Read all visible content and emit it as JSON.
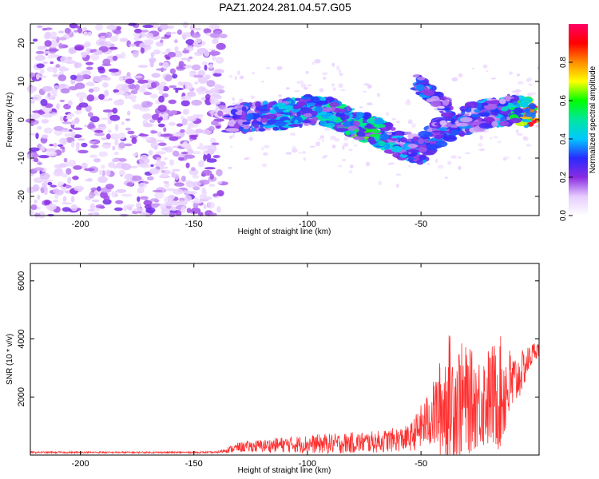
{
  "title": "PAZ1.2024.281.04.57.G05",
  "chart_data": [
    {
      "type": "heatmap",
      "xlabel": "Height of straight line (km)",
      "ylabel": "Frequency (Hz)",
      "xlim": [
        -222,
        2
      ],
      "ylim": [
        -25,
        25
      ],
      "xticks": [
        -200,
        -150,
        -100,
        -50
      ],
      "yticks": [
        -20,
        -10,
        0,
        10,
        20
      ],
      "colorbar": {
        "label": "Normalized spectral amplitude",
        "range": [
          0,
          1
        ],
        "ticks": [
          0.0,
          0.2,
          0.4,
          0.6,
          0.8
        ],
        "colors": [
          "#ffffff",
          "#e6ccff",
          "#8a2be2",
          "#2a2aff",
          "#00c8ff",
          "#00e6a0",
          "#00ff00",
          "#ffff00",
          "#ff8c00",
          "#ff0000",
          "#ff0066"
        ]
      },
      "noise_region": {
        "x_from": -222,
        "x_to": -137,
        "amplitude": 0.2
      },
      "signal_path": [
        {
          "x": -135,
          "f": 0.0
        },
        {
          "x": -125,
          "f": 0.5
        },
        {
          "x": -115,
          "f": 1.0
        },
        {
          "x": -105,
          "f": 2.0
        },
        {
          "x": -95,
          "f": 3.0
        },
        {
          "x": -88,
          "f": 1.5
        },
        {
          "x": -80,
          "f": -1.0
        },
        {
          "x": -70,
          "f": -3.0
        },
        {
          "x": -60,
          "f": -6.0
        },
        {
          "x": -50,
          "f": -8.0
        },
        {
          "x": -44,
          "f": -4.0
        },
        {
          "x": -35,
          "f": -1.0
        },
        {
          "x": -25,
          "f": 1.0
        },
        {
          "x": -15,
          "f": 2.0
        },
        {
          "x": -8,
          "f": 3.0
        },
        {
          "x": 0,
          "f": 1.0
        }
      ],
      "signal_amplitude": [
        {
          "x": -135,
          "a": 0.25
        },
        {
          "x": -110,
          "a": 0.4
        },
        {
          "x": -95,
          "a": 0.42
        },
        {
          "x": -75,
          "a": 0.55
        },
        {
          "x": -60,
          "a": 0.35
        },
        {
          "x": -40,
          "a": 0.3
        },
        {
          "x": -15,
          "a": 0.35
        },
        {
          "x": -5,
          "a": 0.6
        },
        {
          "x": 0,
          "a": 0.95
        }
      ],
      "side_branch": [
        {
          "x": -52,
          "f": 10.0
        },
        {
          "x": -45,
          "f": 6.0
        },
        {
          "x": -38,
          "f": 3.0
        }
      ]
    },
    {
      "type": "line",
      "xlabel": "Height of straight line (km)",
      "ylabel": "SNR (10 * v/v)",
      "xlim": [
        -222,
        2
      ],
      "ylim": [
        0,
        6600
      ],
      "xticks": [
        -200,
        -150,
        -100,
        -50
      ],
      "yticks": [
        2000,
        4000,
        6000
      ],
      "color": "#ff3030",
      "envelope": [
        {
          "x": -222,
          "base": 80,
          "spread": 60
        },
        {
          "x": -140,
          "base": 80,
          "spread": 60
        },
        {
          "x": -130,
          "base": 200,
          "spread": 350
        },
        {
          "x": -110,
          "base": 250,
          "spread": 550
        },
        {
          "x": -90,
          "base": 250,
          "spread": 700
        },
        {
          "x": -70,
          "base": 300,
          "spread": 750
        },
        {
          "x": -55,
          "base": 400,
          "spread": 900
        },
        {
          "x": -45,
          "base": 900,
          "spread": 2200
        },
        {
          "x": -38,
          "base": 900,
          "spread": 4800
        },
        {
          "x": -25,
          "base": 1200,
          "spread": 3200
        },
        {
          "x": -15,
          "base": 1300,
          "spread": 4000
        },
        {
          "x": -8,
          "base": 2200,
          "spread": 1800
        },
        {
          "x": 0,
          "base": 3500,
          "spread": 600
        }
      ]
    }
  ]
}
